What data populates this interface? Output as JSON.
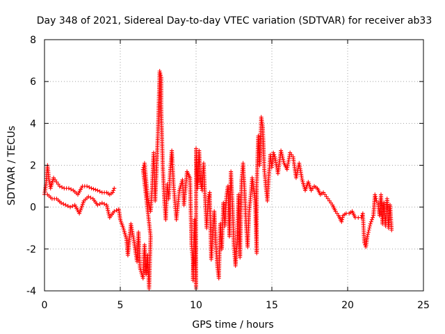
{
  "chart_data": {
    "type": "scatter",
    "title": "Day 348 of 2021, Sidereal Day-to-day VTEC variation (SDTVAR) for receiver ab33",
    "xlabel": "GPS time / hours",
    "ylabel": "SDTVAR / TECUs",
    "xlim": [
      0,
      25
    ],
    "ylim": [
      -4,
      8
    ],
    "xticks": [
      "0",
      "5",
      "10",
      "15",
      "20",
      "25"
    ],
    "yticks": [
      "-4",
      "-2",
      "0",
      "2",
      "4",
      "6",
      "8"
    ],
    "grid": true,
    "marker": "plus",
    "series": [
      {
        "name": "SDTVAR",
        "color": "#ff0000",
        "points": [
          [
            0.0,
            0.6
          ],
          [
            0.1,
            1.1
          ],
          [
            0.2,
            2.0
          ],
          [
            0.3,
            1.3
          ],
          [
            0.4,
            0.9
          ],
          [
            0.6,
            1.4
          ],
          [
            0.8,
            1.2
          ],
          [
            1.0,
            1.0
          ],
          [
            1.3,
            0.9
          ],
          [
            1.6,
            0.9
          ],
          [
            1.9,
            0.8
          ],
          [
            2.2,
            0.6
          ],
          [
            2.5,
            1.0
          ],
          [
            2.8,
            1.0
          ],
          [
            3.1,
            0.9
          ],
          [
            3.5,
            0.8
          ],
          [
            3.8,
            0.7
          ],
          [
            4.1,
            0.7
          ],
          [
            4.3,
            0.6
          ],
          [
            4.5,
            0.7
          ],
          [
            4.6,
            0.9
          ],
          [
            0.2,
            0.6
          ],
          [
            0.5,
            0.4
          ],
          [
            0.8,
            0.4
          ],
          [
            1.1,
            0.2
          ],
          [
            1.4,
            0.1
          ],
          [
            1.7,
            0.0
          ],
          [
            2.0,
            0.1
          ],
          [
            2.3,
            -0.3
          ],
          [
            2.6,
            0.3
          ],
          [
            2.9,
            0.5
          ],
          [
            3.2,
            0.4
          ],
          [
            3.5,
            0.1
          ],
          [
            3.8,
            0.2
          ],
          [
            4.1,
            0.1
          ],
          [
            4.3,
            -0.5
          ],
          [
            4.6,
            -0.2
          ],
          [
            4.9,
            -0.1
          ],
          [
            5.0,
            -0.6
          ],
          [
            5.2,
            -1.0
          ],
          [
            5.4,
            -1.5
          ],
          [
            5.5,
            -2.3
          ],
          [
            5.7,
            -0.8
          ],
          [
            5.9,
            -1.6
          ],
          [
            6.1,
            -2.6
          ],
          [
            6.2,
            -1.2
          ],
          [
            6.3,
            -2.9
          ],
          [
            6.5,
            -3.4
          ],
          [
            6.6,
            -1.8
          ],
          [
            6.7,
            -3.2
          ],
          [
            6.8,
            -2.3
          ],
          [
            6.9,
            -3.9
          ],
          [
            7.0,
            -1.4
          ],
          [
            6.5,
            1.8
          ],
          [
            6.6,
            2.1
          ],
          [
            6.8,
            0.5
          ],
          [
            7.0,
            -0.2
          ],
          [
            7.1,
            0.9
          ],
          [
            7.2,
            2.6
          ],
          [
            7.3,
            0.3
          ],
          [
            7.4,
            1.9
          ],
          [
            7.5,
            3.9
          ],
          [
            7.6,
            6.5
          ],
          [
            7.7,
            6.2
          ],
          [
            7.7,
            4.7
          ],
          [
            7.8,
            2.0
          ],
          [
            7.9,
            0.4
          ],
          [
            8.0,
            -0.6
          ],
          [
            8.1,
            1.1
          ],
          [
            8.2,
            0.4
          ],
          [
            8.3,
            1.8
          ],
          [
            8.4,
            2.7
          ],
          [
            8.5,
            1.2
          ],
          [
            8.6,
            0.3
          ],
          [
            8.7,
            -0.6
          ],
          [
            8.9,
            0.8
          ],
          [
            9.1,
            1.3
          ],
          [
            9.2,
            0.1
          ],
          [
            9.4,
            1.7
          ],
          [
            9.6,
            1.4
          ],
          [
            9.7,
            -1.8
          ],
          [
            9.8,
            -2.6
          ],
          [
            9.8,
            -3.5
          ],
          [
            9.9,
            -0.6
          ],
          [
            10.0,
            -3.9
          ],
          [
            10.0,
            2.8
          ],
          [
            10.1,
            0.9
          ],
          [
            10.2,
            2.7
          ],
          [
            10.3,
            1.2
          ],
          [
            10.4,
            0.8
          ],
          [
            10.5,
            2.1
          ],
          [
            10.6,
            0.3
          ],
          [
            10.7,
            -1.0
          ],
          [
            10.8,
            0.4
          ],
          [
            10.9,
            0.7
          ],
          [
            11.0,
            -2.5
          ],
          [
            11.1,
            -1.3
          ],
          [
            11.2,
            -0.2
          ],
          [
            11.3,
            -1.7
          ],
          [
            11.4,
            -2.8
          ],
          [
            11.5,
            -3.4
          ],
          [
            11.6,
            -0.8
          ],
          [
            11.7,
            -2.0
          ],
          [
            11.8,
            0.2
          ],
          [
            11.9,
            -0.9
          ],
          [
            12.0,
            0.5
          ],
          [
            12.1,
            1.0
          ],
          [
            12.2,
            -1.4
          ],
          [
            12.3,
            1.7
          ],
          [
            12.4,
            0.1
          ],
          [
            12.5,
            -1.9
          ],
          [
            12.6,
            -2.8
          ],
          [
            12.7,
            -1.7
          ],
          [
            12.8,
            0.6
          ],
          [
            12.9,
            -2.4
          ],
          [
            13.0,
            1.3
          ],
          [
            13.1,
            2.1
          ],
          [
            13.2,
            0.8
          ],
          [
            13.3,
            -0.8
          ],
          [
            13.4,
            -1.9
          ],
          [
            13.5,
            -0.2
          ],
          [
            13.6,
            0.5
          ],
          [
            13.7,
            1.4
          ],
          [
            13.8,
            0.9
          ],
          [
            13.9,
            0.2
          ],
          [
            14.0,
            -2.2
          ],
          [
            14.0,
            1.0
          ],
          [
            14.1,
            3.4
          ],
          [
            14.2,
            2.0
          ],
          [
            14.3,
            4.3
          ],
          [
            14.4,
            3.8
          ],
          [
            14.5,
            1.8
          ],
          [
            14.6,
            1.0
          ],
          [
            14.7,
            0.3
          ],
          [
            14.8,
            1.5
          ],
          [
            14.9,
            2.5
          ],
          [
            15.0,
            1.9
          ],
          [
            15.1,
            2.6
          ],
          [
            15.2,
            2.4
          ],
          [
            15.4,
            1.6
          ],
          [
            15.6,
            2.7
          ],
          [
            15.8,
            2.1
          ],
          [
            16.0,
            1.8
          ],
          [
            16.2,
            2.6
          ],
          [
            16.4,
            2.4
          ],
          [
            16.6,
            1.4
          ],
          [
            16.8,
            2.1
          ],
          [
            17.0,
            1.3
          ],
          [
            17.2,
            0.8
          ],
          [
            17.4,
            1.2
          ],
          [
            17.6,
            0.8
          ],
          [
            17.8,
            1.0
          ],
          [
            18.0,
            0.9
          ],
          [
            18.2,
            0.6
          ],
          [
            18.4,
            0.7
          ],
          [
            18.6,
            0.5
          ],
          [
            18.8,
            0.3
          ],
          [
            19.0,
            0.1
          ],
          [
            19.2,
            -0.2
          ],
          [
            19.4,
            -0.4
          ],
          [
            19.6,
            -0.7
          ],
          [
            19.7,
            -0.4
          ],
          [
            19.9,
            -0.3
          ],
          [
            20.1,
            -0.3
          ],
          [
            20.3,
            -0.2
          ],
          [
            20.5,
            -0.5
          ],
          [
            20.7,
            -0.5
          ],
          [
            20.9,
            -0.5
          ],
          [
            21.0,
            -0.3
          ],
          [
            21.1,
            -1.7
          ],
          [
            21.2,
            -1.9
          ],
          [
            21.3,
            -1.4
          ],
          [
            21.4,
            -1.1
          ],
          [
            21.5,
            -0.8
          ],
          [
            21.6,
            -0.6
          ],
          [
            21.7,
            -0.4
          ],
          [
            21.8,
            0.6
          ],
          [
            21.9,
            0.3
          ],
          [
            22.0,
            0.2
          ],
          [
            22.1,
            -0.4
          ],
          [
            22.2,
            0.6
          ],
          [
            22.3,
            -0.8
          ],
          [
            22.4,
            0.2
          ],
          [
            22.5,
            -0.9
          ],
          [
            22.6,
            0.4
          ],
          [
            22.7,
            -1.0
          ],
          [
            22.8,
            0.1
          ],
          [
            22.9,
            -1.1
          ]
        ]
      }
    ]
  }
}
